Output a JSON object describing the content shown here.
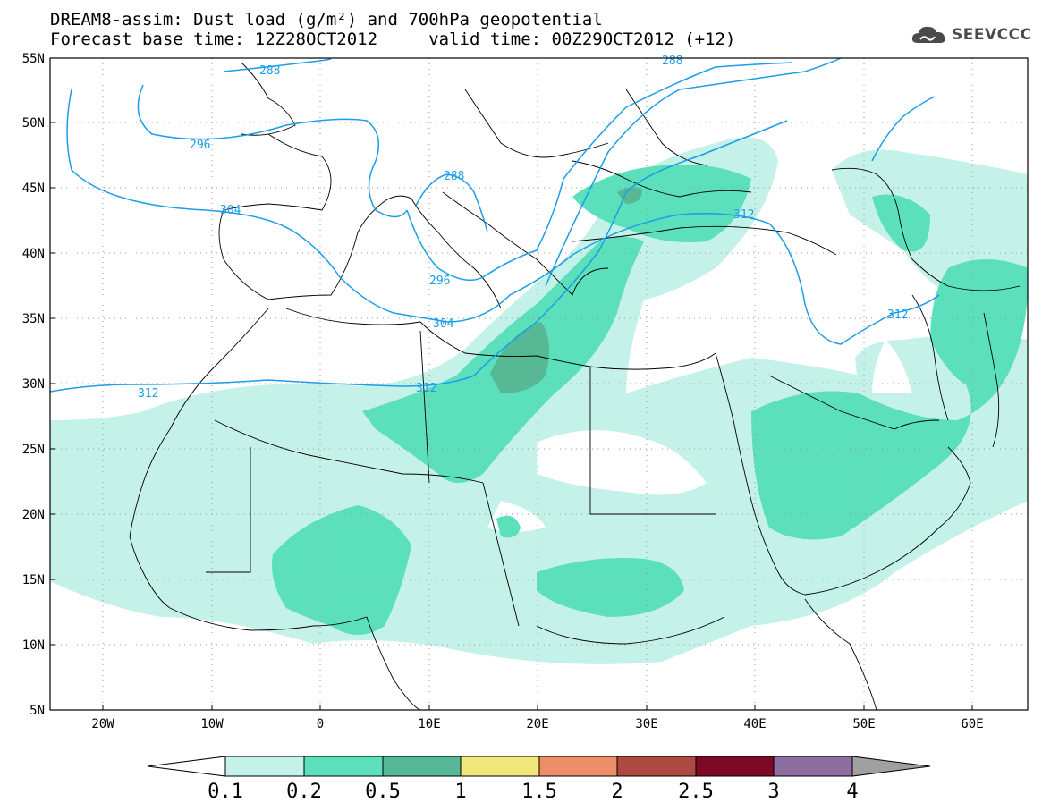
{
  "header": {
    "title_line1": "DREAM8-assim: Dust load (g/m²) and 700hPa geopotential",
    "title_line2": "Forecast base time: 12Z28OCT2012     valid time: 00Z29OCT2012 (+12)",
    "logo_text": "SEEVCCC"
  },
  "axes": {
    "lat_labels": [
      "55N",
      "50N",
      "45N",
      "40N",
      "35N",
      "30N",
      "25N",
      "20N",
      "15N",
      "10N",
      "5N"
    ],
    "lon_labels": [
      "20W",
      "10W",
      "0",
      "10E",
      "20E",
      "30E",
      "40E",
      "50E",
      "60E"
    ]
  },
  "contours": {
    "color": "#1a9ee8",
    "labels": [
      "288",
      "296",
      "288",
      "304",
      "296",
      "304",
      "312",
      "312",
      "312",
      "288"
    ]
  },
  "colorbar": {
    "colors": [
      "#ffffff",
      "#c4f1e8",
      "#5be0bb",
      "#56b894",
      "#f0e67a",
      "#ec8f68",
      "#ac4a42",
      "#7d0927",
      "#8e6da0",
      "#a0a0a0"
    ],
    "labels": [
      "0.1",
      "0.2",
      "0.5",
      "1",
      "1.5",
      "2",
      "2.5",
      "3",
      "4"
    ]
  },
  "fill_colors": {
    "level_01": "#c4f1e8",
    "level_02": "#5be0bb",
    "level_05": "#56b894"
  }
}
